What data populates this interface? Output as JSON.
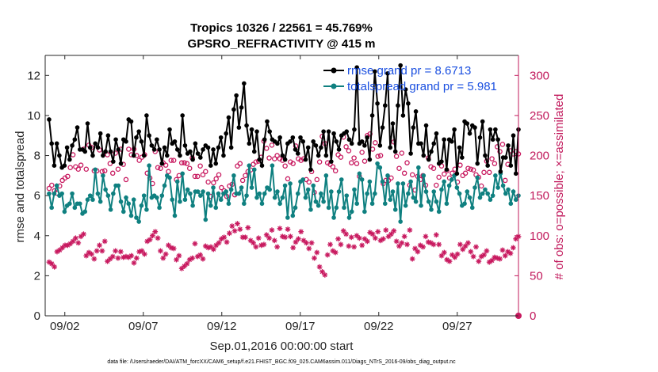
{
  "chart_data": {
    "type": "line",
    "title": "Tropics 10326 / 22561 = 45.769%",
    "subtitle": "GPSRO_REFRACTIVITY @ 415 m",
    "xlabel": "Sep.01,2016 00:00:00 start",
    "ylabel": "rmse and totalspread",
    "y2label": "# of obs: o=possible; ×=assimilated",
    "footer": "data file: /Users/raeder/DAI/ATM_forcXX/CAM6_setup/f.e21.FHIST_BGC.f09_025.CAM6assim.011/Diags_NTrS_2016-09/obs_diag_output.nc",
    "xlim": [
      0.75,
      30.9
    ],
    "ylim": [
      0,
      13
    ],
    "y2lim": [
      0,
      325
    ],
    "xticks": [
      2,
      7,
      12,
      17,
      22,
      27
    ],
    "xtick_labels": [
      "09/02",
      "09/07",
      "09/12",
      "09/17",
      "09/22",
      "09/27"
    ],
    "yticks": [
      0,
      2,
      4,
      6,
      8,
      10,
      12
    ],
    "ytick_labels": [
      "0",
      "2",
      "4",
      "6",
      "8",
      "10",
      "12"
    ],
    "y2ticks": [
      0,
      50,
      100,
      150,
      200,
      250,
      300
    ],
    "y2tick_labels": [
      "0",
      "50",
      "100",
      "150",
      "200",
      "250",
      "300"
    ],
    "legend_position": "top-right",
    "colors": {
      "rmse": "#000000",
      "spread": "#0f8080",
      "obs": "#c8195f",
      "legend_text": "#1a4fe0"
    },
    "series": [
      {
        "name": "rmse grand pr = 8.6713",
        "axis": "left",
        "values": [
          9.8,
          8.6,
          7.5,
          8.6,
          8.0,
          7.4,
          7.5,
          8.4,
          7.8,
          8.5,
          8.8,
          9.4,
          8.3,
          8.3,
          8.2,
          9.6,
          8.4,
          8.0,
          8.6,
          8.4,
          9.1,
          8.0,
          8.2,
          9.0,
          8.2,
          7.7,
          8.8,
          8.3,
          7.6,
          8.8,
          8.7,
          9.8,
          9.7,
          8.0,
          8.9,
          9.2,
          8.7,
          8.0,
          10.0,
          9.0,
          8.5,
          8.3,
          8.8,
          8.3,
          7.6,
          8.4,
          8.0,
          9.3,
          8.6,
          8.7,
          8.3,
          8.0,
          10.0,
          8.5,
          8.1,
          8.2,
          7.8,
          8.6,
          8.1,
          7.9,
          8.3,
          8.5,
          8.4,
          7.5,
          8.3,
          7.6,
          8.4,
          8.9,
          8.0,
          9.1,
          9.9,
          8.4,
          10.3,
          11.0,
          9.4,
          10.4,
          11.6,
          9.5,
          8.6,
          9.3,
          8.2,
          9.2,
          7.8,
          7.5,
          8.8,
          9.7,
          9.2,
          8.8,
          8.7,
          8.6,
          8.9,
          8.0,
          7.8,
          8.6,
          8.7,
          8.9,
          8.3,
          8.1,
          8.9,
          8.7,
          7.8,
          8.4,
          7.3,
          8.7,
          8.5,
          8.0,
          8.4,
          9.2,
          8.0,
          9.2,
          7.7,
          9.1,
          8.7,
          8.3,
          9.0,
          9.1,
          9.2,
          8.8,
          8.6,
          9.3,
          12.4,
          8.6,
          8.7,
          8.5,
          8.9,
          7.8,
          10.0,
          12.2,
          10.6,
          8.5,
          9.4,
          10.5,
          12.1,
          8.4,
          9.6,
          8.2,
          10.5,
          12.5,
          10.0,
          11.3,
          10.6,
          8.1,
          9.4,
          10.2,
          8.6,
          8.6,
          8.0,
          9.5,
          7.8,
          8.2,
          8.6,
          9.1,
          7.6,
          7.7,
          8.8,
          7.3,
          8.8,
          8.7,
          9.3,
          7.1,
          8.4,
          7.9,
          9.7,
          9.6,
          9.1,
          9.5,
          9.4,
          7.6,
          8.9,
          9.7,
          8.0,
          7.5,
          9.3,
          8.8,
          9.3,
          8.8,
          7.2,
          7.9,
          7.9,
          8.5,
          7.5,
          9.0,
          7.1,
          9.3
        ]
      },
      {
        "name": "totalspread grand pr = 5.981",
        "axis": "left",
        "values": [
          6.1,
          5.4,
          6.1,
          6.5,
          6.0,
          6.1,
          5.2,
          5.5,
          5.6,
          6.1,
          5.4,
          5.6,
          5.6,
          5.1,
          5.2,
          5.8,
          6.0,
          5.8,
          7.3,
          6.1,
          5.7,
          7.0,
          6.3,
          6.0,
          5.3,
          6.1,
          6.5,
          6.5,
          5.7,
          5.2,
          5.9,
          5.6,
          5.0,
          5.8,
          4.9,
          4.7,
          5.5,
          6.0,
          5.3,
          7.5,
          5.9,
          6.0,
          5.9,
          5.4,
          6.0,
          6.5,
          7.0,
          6.9,
          5.8,
          5.0,
          6.7,
          5.7,
          7.1,
          5.8,
          6.3,
          6.1,
          5.5,
          6.2,
          6.2,
          6.0,
          6.2,
          4.8,
          6.1,
          5.5,
          6.4,
          5.4,
          6.1,
          5.8,
          6.1,
          6.2,
          5.6,
          6.3,
          7.0,
          6.1,
          6.1,
          6.4,
          5.6,
          6.0,
          7.5,
          6.4,
          7.3,
          5.9,
          6.1,
          5.6,
          6.1,
          6.4,
          6.3,
          7.5,
          5.9,
          6.2,
          5.6,
          5.9,
          6.5,
          4.9,
          6.6,
          5.0,
          5.4,
          6.1,
          6.7,
          6.8,
          5.9,
          6.3,
          5.3,
          6.5,
          5.7,
          5.5,
          6.1,
          5.7,
          7.0,
          5.4,
          6.2,
          4.9,
          5.4,
          6.2,
          6.8,
          5.4,
          6.0,
          4.9,
          5.2,
          6.3,
          5.6,
          7.1,
          6.8,
          5.2,
          6.1,
          6.7,
          5.6,
          6.1,
          7.6,
          7.4,
          6.7,
          5.6,
          7.0,
          5.8,
          6.2,
          5.3,
          6.6,
          4.7,
          6.6,
          5.5,
          6.1,
          6.7,
          5.9,
          5.7,
          7.4,
          5.5,
          7.0,
          6.2,
          5.7,
          5.3,
          6.2,
          5.7,
          5.2,
          6.3,
          6.7,
          5.6,
          6.5,
          6.8,
          7.0,
          6.4,
          6.1,
          5.5,
          5.6,
          6.2,
          5.9,
          5.4,
          6.4,
          6.9,
          5.9,
          6.1,
          6.3,
          6.1,
          5.8,
          6.0,
          7.0,
          6.4,
          7.1,
          6.5,
          6.1,
          6.3,
          5.6,
          6.2,
          5.8,
          6.0
        ]
      },
      {
        "name": "possible",
        "axis": "right",
        "marker": "circle",
        "values": [
          159,
          163,
          156,
          153,
          162,
          169,
          172,
          174,
          185,
          201,
          186,
          183,
          188,
          208,
          183,
          213,
          210,
          181,
          181,
          207,
          180,
          181,
          201,
          190,
          178,
          203,
          183,
          208,
          189,
          170,
          208,
          201,
          208,
          200,
          194,
          198,
          201,
          178,
          172,
          165,
          205,
          185,
          184,
          191,
          188,
          180,
          194,
          194,
          170,
          175,
          191,
          191,
          190,
          184,
          197,
          174,
          174,
          187,
          176,
          180,
          167,
          149,
          166,
          171,
          176,
          160,
          156,
          149,
          162,
          164,
          151,
          187,
          190,
          169,
          175,
          180,
          182,
          189,
          192,
          193,
          198,
          218,
          209,
          197,
          213,
          196,
          200,
          196,
          194,
          187,
          171,
          192,
          190,
          212,
          196,
          194,
          196,
          170,
          167,
          180,
          154,
          170,
          192,
          224,
          215,
          191,
          189,
          186,
          181,
          201,
          198,
          223,
          211,
          206,
          191,
          197,
          190,
          174,
          204,
          193,
          225,
          227,
          208,
          216,
          199,
          200,
          165,
          169,
          169,
          172,
          217,
          199,
          184,
          203,
          178,
          191,
          163,
          176,
          157,
          174,
          170,
          175,
          163,
          197,
          186,
          184,
          163,
          173,
          187,
          177,
          181,
          172,
          178,
          183,
          167,
          188,
          175,
          178,
          184,
          183,
          182,
          176,
          173,
          162,
          179,
          193,
          179,
          196,
          190,
          211,
          205,
          214,
          169,
          189,
          206,
          202,
          205,
          202
        ]
      },
      {
        "name": "assimilated",
        "axis": "right",
        "marker": "star",
        "values": [
          67,
          65,
          61,
          80,
          82,
          85,
          88,
          88,
          90,
          93,
          97,
          91,
          99,
          102,
          75,
          79,
          77,
          71,
          81,
          88,
          81,
          93,
          68,
          71,
          74,
          81,
          72,
          80,
          73,
          74,
          73,
          75,
          66,
          72,
          80,
          81,
          77,
          93,
          95,
          100,
          105,
          97,
          81,
          72,
          77,
          88,
          85,
          84,
          70,
          75,
          59,
          62,
          65,
          70,
          72,
          90,
          74,
          76,
          71,
          87,
          85,
          86,
          83,
          88,
          91,
          96,
          98,
          92,
          103,
          112,
          106,
          115,
          108,
          98,
          98,
          110,
          94,
          91,
          86,
          97,
          88,
          89,
          101,
          97,
          107,
          94,
          86,
          109,
          99,
          98,
          108,
          99,
          85,
          92,
          96,
          105,
          94,
          91,
          84,
          91,
          72,
          79,
          61,
          55,
          51,
          76,
          89,
          81,
          79,
          96,
          89,
          106,
          102,
          87,
          98,
          86,
          100,
          97,
          88,
          96,
          93,
          104,
          102,
          97,
          105,
          94,
          96,
          107,
          99,
          102,
          106,
          93,
          87,
          91,
          99,
          89,
          107,
          71,
          84,
          80,
          88,
          86,
          99,
          92,
          91,
          89,
          101,
          89,
          75,
          79,
          70,
          68,
          76,
          73,
          77,
          89,
          83,
          87,
          91,
          80,
          74,
          86,
          68,
          74,
          76,
          81,
          67,
          69,
          73,
          72,
          71,
          82,
          75,
          80,
          78,
          85,
          96,
          99
        ]
      }
    ]
  }
}
